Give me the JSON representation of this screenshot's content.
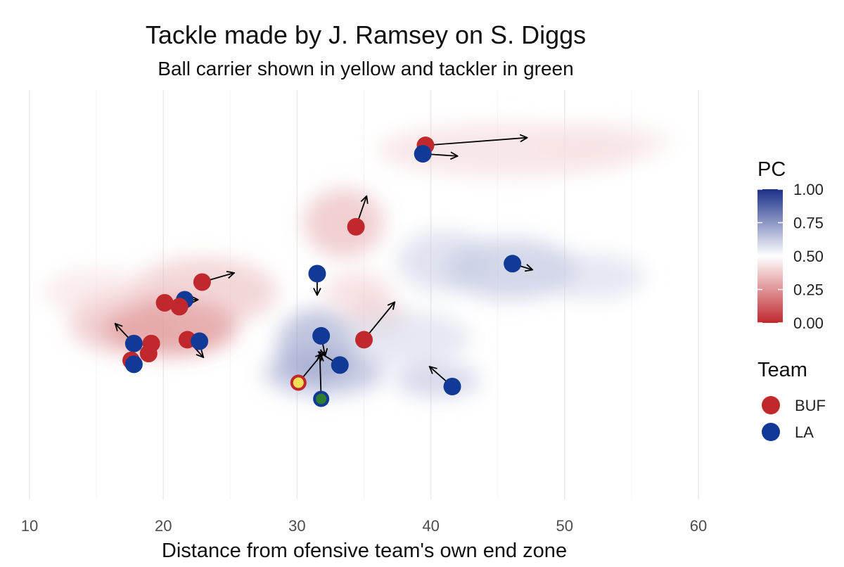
{
  "chart_data": {
    "type": "scatter",
    "title": "Tackle made by J. Ramsey on S. Diggs",
    "subtitle": "Ball carrier shown in yellow and tackler in green",
    "xlabel": "Distance from ofensive team's own end zone",
    "ylabel": "",
    "xlim": [
      10,
      60
    ],
    "ylim": [
      0,
      53.3
    ],
    "x_ticks": [
      10,
      20,
      30,
      40,
      50,
      60
    ],
    "grid": "vertical",
    "teams": [
      {
        "name": "BUF",
        "color": "#c0282e"
      },
      {
        "name": "LA",
        "color": "#103a96"
      }
    ],
    "ball_carrier_fill": "#f2df55",
    "tackler_fill": "#2e7d32",
    "pc_scale": {
      "title": "PC",
      "range": [
        0,
        1
      ],
      "ticks": [
        "0.00",
        "0.25",
        "0.50",
        "0.75",
        "1.00"
      ],
      "low_color": "#c0282e",
      "mid_color": "#ffffff",
      "high_color": "#1a2f8a"
    },
    "players": [
      {
        "team": "BUF",
        "x": 39.6,
        "y": 46.1,
        "dx": 7.6,
        "dy": 1.0
      },
      {
        "team": "LA",
        "x": 39.4,
        "y": 45.0,
        "dx": 2.6,
        "dy": -0.3
      },
      {
        "team": "BUF",
        "x": 34.4,
        "y": 35.5,
        "dx": 0.8,
        "dy": 4.0
      },
      {
        "team": "LA",
        "x": 46.1,
        "y": 30.7,
        "dx": 1.5,
        "dy": -0.8
      },
      {
        "team": "BUF",
        "x": 22.9,
        "y": 28.3,
        "dx": 2.4,
        "dy": 1.2
      },
      {
        "team": "LA",
        "x": 31.5,
        "y": 29.4,
        "dx": 0.0,
        "dy": -2.8
      },
      {
        "team": "BUF",
        "x": 35.0,
        "y": 20.8,
        "dx": 2.3,
        "dy": 4.9
      },
      {
        "team": "LA",
        "x": 21.6,
        "y": 26.0,
        "dx": 1.0,
        "dy": 0.0
      },
      {
        "team": "BUF",
        "x": 20.1,
        "y": 25.6,
        "dx": 0,
        "dy": 0
      },
      {
        "team": "BUF",
        "x": 21.2,
        "y": 25.1,
        "dx": 0,
        "dy": 0
      },
      {
        "team": "BUF",
        "x": 21.8,
        "y": 20.8,
        "dx": 1.2,
        "dy": -2.3
      },
      {
        "team": "LA",
        "x": 22.7,
        "y": 20.6,
        "dx": 0,
        "dy": 0
      },
      {
        "team": "BUF",
        "x": 19.1,
        "y": 20.3,
        "dx": 0,
        "dy": 0
      },
      {
        "team": "LA",
        "x": 17.8,
        "y": 20.3,
        "dx": -1.4,
        "dy": 2.6
      },
      {
        "team": "BUF",
        "x": 18.9,
        "y": 19.0,
        "dx": 0,
        "dy": 0
      },
      {
        "team": "BUF",
        "x": 17.6,
        "y": 18.1,
        "dx": 0,
        "dy": 0
      },
      {
        "team": "LA",
        "x": 17.8,
        "y": 17.6,
        "dx": 0,
        "dy": 0
      },
      {
        "team": "LA",
        "x": 31.8,
        "y": 21.3,
        "dx": 0.3,
        "dy": -2.6
      },
      {
        "team": "LA",
        "x": 33.2,
        "y": 17.5,
        "dx": -1.6,
        "dy": 1.7
      },
      {
        "team": "LA",
        "x": 41.6,
        "y": 14.7,
        "dx": -1.7,
        "dy": 2.6
      },
      {
        "team": "BUF",
        "x": 30.1,
        "y": 15.2,
        "dx": 1.8,
        "dy": 3.8,
        "role": "ball_carrier"
      },
      {
        "team": "LA",
        "x": 31.8,
        "y": 13.1,
        "dx": -0.1,
        "dy": 5.8,
        "role": "tackler"
      }
    ],
    "density_blobs": [
      {
        "x": 20.5,
        "y": 22.5,
        "sx": 5.0,
        "sy": 3.8,
        "v": 0.13
      },
      {
        "x": 23.0,
        "y": 27.0,
        "sx": 5.5,
        "sy": 4.5,
        "v": 0.33
      },
      {
        "x": 17.0,
        "y": 23.0,
        "sx": 4.0,
        "sy": 4.0,
        "v": 0.3
      },
      {
        "x": 15.0,
        "y": 27.0,
        "sx": 4.0,
        "sy": 3.0,
        "v": 0.42
      },
      {
        "x": 33.5,
        "y": 36.0,
        "sx": 3.0,
        "sy": 4.5,
        "v": 0.3
      },
      {
        "x": 34.5,
        "y": 27.0,
        "sx": 2.5,
        "sy": 2.5,
        "v": 0.38
      },
      {
        "x": 36.0,
        "y": 24.0,
        "sx": 2.2,
        "sy": 2.2,
        "v": 0.37
      },
      {
        "x": 46.0,
        "y": 45.5,
        "sx": 10.0,
        "sy": 3.5,
        "v": 0.4
      },
      {
        "x": 53.0,
        "y": 46.5,
        "sx": 5.0,
        "sy": 2.5,
        "v": 0.43
      },
      {
        "x": 31.5,
        "y": 20.0,
        "sx": 3.0,
        "sy": 4.8,
        "v": 0.75
      },
      {
        "x": 32.0,
        "y": 16.5,
        "sx": 4.5,
        "sy": 3.0,
        "v": 0.72
      },
      {
        "x": 40.5,
        "y": 15.5,
        "sx": 3.2,
        "sy": 2.2,
        "v": 0.66
      },
      {
        "x": 46.0,
        "y": 30.0,
        "sx": 5.0,
        "sy": 4.0,
        "v": 0.67
      },
      {
        "x": 41.0,
        "y": 31.0,
        "sx": 3.5,
        "sy": 4.0,
        "v": 0.62
      },
      {
        "x": 38.0,
        "y": 21.0,
        "sx": 5.0,
        "sy": 3.5,
        "v": 0.6
      },
      {
        "x": 52.0,
        "y": 29.0,
        "sx": 4.0,
        "sy": 3.0,
        "v": 0.6
      }
    ]
  }
}
